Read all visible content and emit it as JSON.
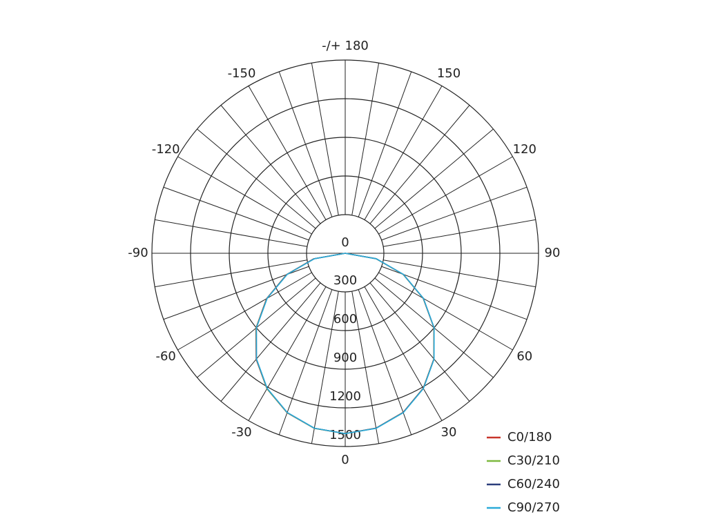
{
  "chart_data": {
    "type": "polar",
    "theta": [
      -90,
      -80,
      -70,
      -60,
      -50,
      -40,
      -30,
      -20,
      -10,
      0,
      10,
      20,
      30,
      40,
      50,
      60,
      70,
      80,
      90
    ],
    "series": [
      {
        "name": "C0/180",
        "color": "#c8352b",
        "values": [
          0,
          250,
          485,
          705,
          905,
          1075,
          1215,
          1318,
          1380,
          1400,
          1378,
          1314,
          1210,
          1070,
          898,
          698,
          478,
          242,
          0
        ]
      },
      {
        "name": "C30/210",
        "color": "#7cb83e",
        "values": [
          0,
          246,
          482,
          702,
          902,
          1073,
          1214,
          1317,
          1380,
          1400,
          1379,
          1315,
          1211,
          1071,
          899,
          699,
          479,
          243,
          0
        ]
      },
      {
        "name": "C60/240",
        "color": "#2b3d7c",
        "values": [
          0,
          244,
          480,
          700,
          900,
          1072,
          1212,
          1316,
          1379,
          1400,
          1379,
          1316,
          1212,
          1072,
          900,
          700,
          480,
          244,
          0
        ]
      },
      {
        "name": "C90/270",
        "color": "#2aaad8",
        "values": [
          0,
          243,
          479,
          699,
          899,
          1071,
          1211,
          1315,
          1379,
          1400,
          1380,
          1317,
          1213,
          1073,
          901,
          701,
          481,
          245,
          0
        ]
      }
    ],
    "rlim": [
      0,
      1500
    ],
    "rticks": [
      0,
      300,
      600,
      900,
      1200,
      1500
    ],
    "thetaticks": [
      0,
      30,
      60,
      90,
      120,
      150,
      {
        "value": 180,
        "label": "-/+ 180"
      },
      -150,
      -120,
      -90,
      -60,
      -30
    ]
  }
}
